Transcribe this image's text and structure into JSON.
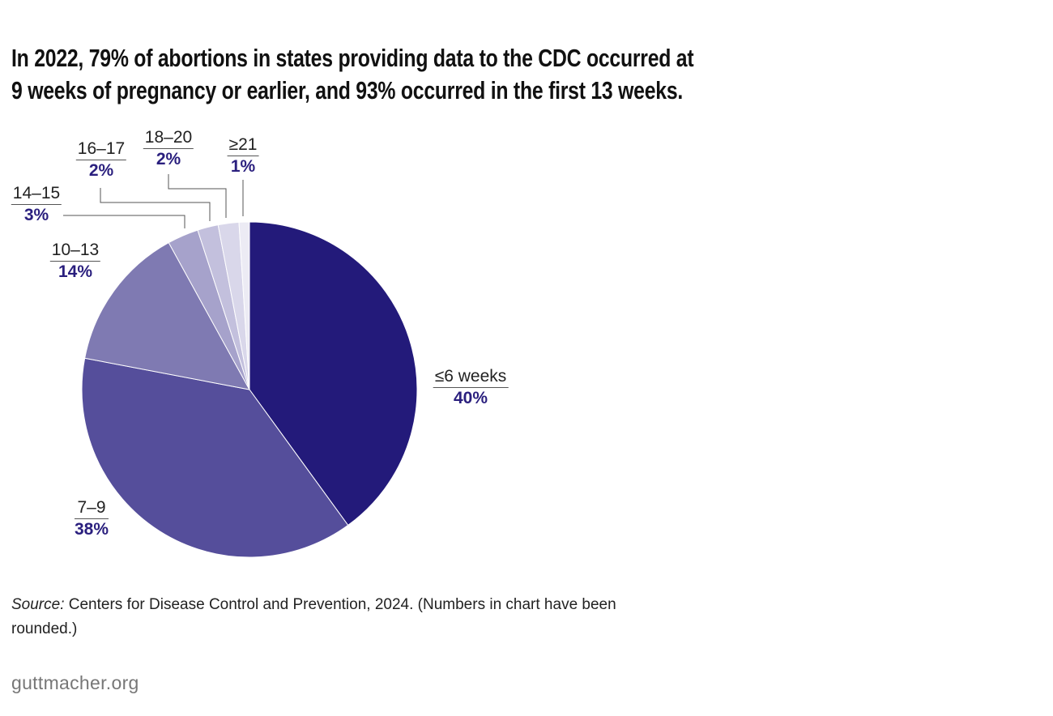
{
  "title_lines": [
    "In 2022, 79% of abortions in states providing data to the CDC occurred at",
    "9 weeks of pregnancy or earlier, and 93% occurred in the first 13 weeks."
  ],
  "chart_data": {
    "type": "pie",
    "title": "In 2022, 79% of abortions in states providing data to the CDC occurred at 9 weeks of pregnancy or earlier, and 93% occurred in the first 13 weeks.",
    "categories": [
      "≤6 weeks",
      "7–9",
      "10–13",
      "14–15",
      "16–17",
      "18–20",
      "≥21"
    ],
    "values": [
      40,
      38,
      14,
      3,
      2,
      2,
      1
    ],
    "labels": [
      "40%",
      "38%",
      "14%",
      "3%",
      "2%",
      "2%",
      "1%"
    ],
    "colors": [
      "#231a7a",
      "#554e9b",
      "#7f7ab2",
      "#a6a2cb",
      "#c3c0dd",
      "#d9d7ea",
      "#ecebf4"
    ],
    "start": "top, clockwise"
  },
  "source": {
    "label": "Source:",
    "text": " Centers for Disease Control and Prevention, 2024. (Numbers in chart have been rounded.)"
  },
  "footer": "guttmacher.org"
}
